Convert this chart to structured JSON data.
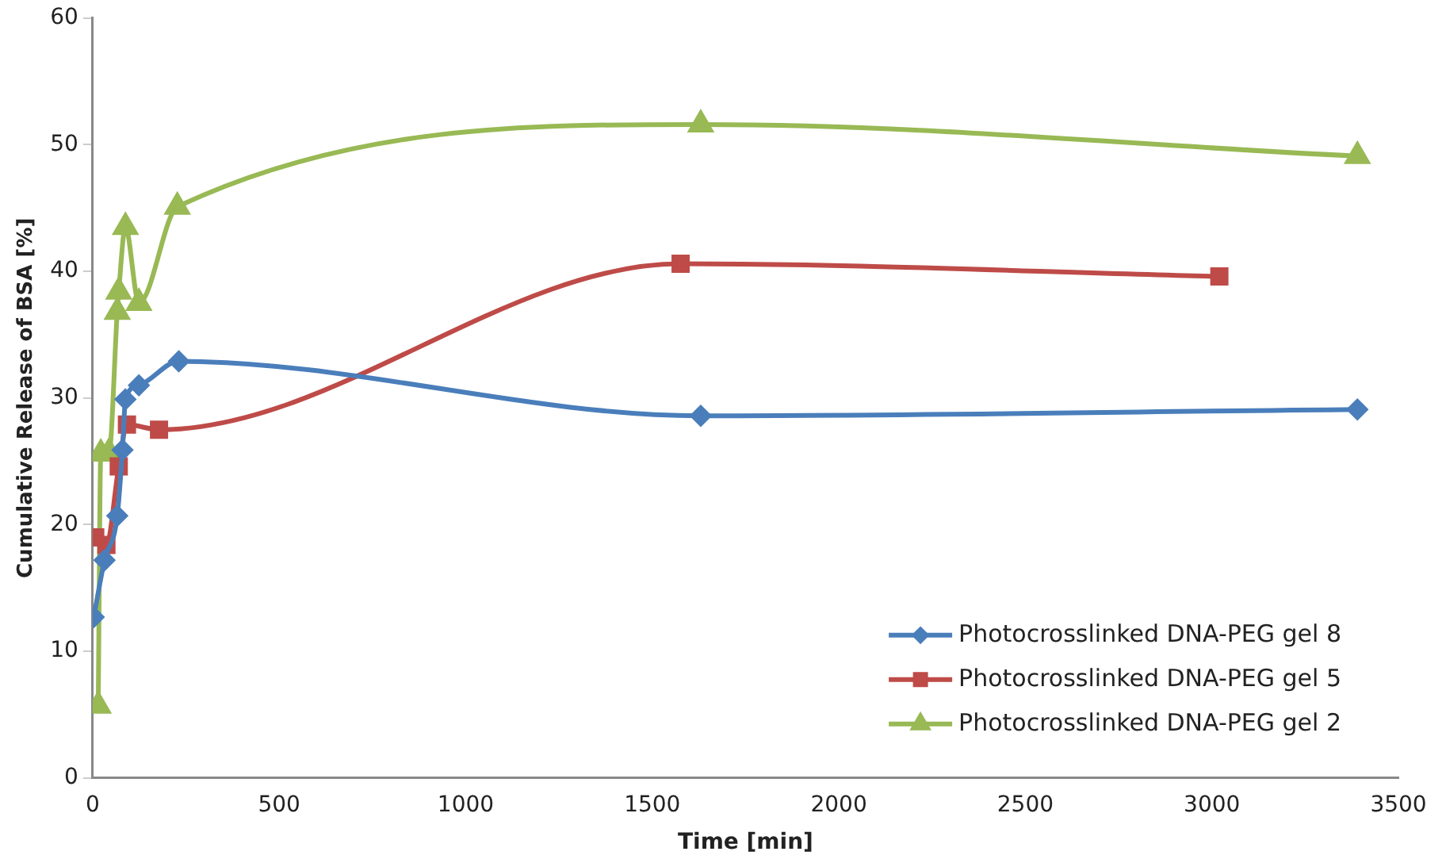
{
  "chart_data": {
    "type": "line",
    "xlabel": "Time [min]",
    "ylabel": "Cumulative Release of BSA [%]",
    "xlim": [
      0,
      3500
    ],
    "xticks": [
      0,
      500,
      1000,
      1500,
      2000,
      2500,
      3000,
      3500
    ],
    "ylim": [
      0,
      60
    ],
    "yticks": [
      0,
      10,
      20,
      30,
      40,
      50,
      60
    ],
    "grid": false,
    "legend": "bottom right",
    "series": [
      {
        "name": "Photocrosslinked DNA-PEG gel 8",
        "color": "#4a7ebb",
        "marker": "diamond",
        "x": [
          3,
          32,
          66,
          80,
          88,
          124,
          231,
          1630,
          3390
        ],
        "values": [
          12.7,
          17.2,
          20.7,
          25.9,
          29.9,
          31.0,
          32.9,
          28.6,
          29.1
        ]
      },
      {
        "name": "Photocrosslinked DNA-PEG gel 5",
        "color": "#be4b48",
        "marker": "square",
        "x": [
          7,
          37,
          70,
          92,
          178,
          1576,
          3020
        ],
        "values": [
          19.0,
          18.4,
          24.6,
          27.9,
          27.5,
          40.6,
          39.6
        ]
      },
      {
        "name": "Photocrosslinked DNA-PEG gel 2",
        "color": "#98b954",
        "marker": "triangle",
        "x": [
          15,
          22,
          44,
          66,
          70,
          88,
          124,
          227,
          1630,
          3390
        ],
        "values": [
          5.7,
          25.6,
          25.7,
          36.8,
          38.4,
          43.5,
          37.5,
          45.1,
          51.6,
          49.1
        ]
      }
    ]
  }
}
